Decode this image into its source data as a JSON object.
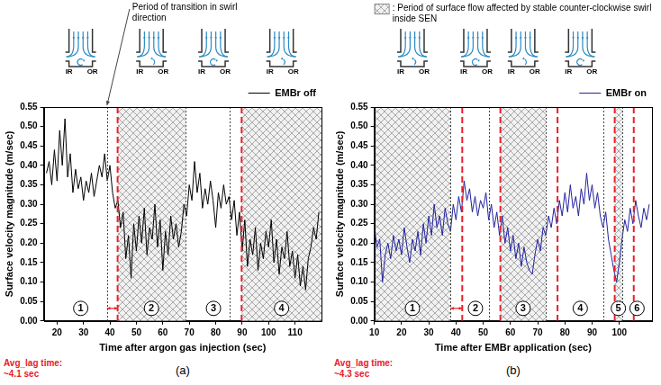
{
  "chart_data": [
    {
      "type": "line",
      "panel_label": "(a)",
      "x_label": "Time after argon gas injection (sec)",
      "y_label": "Surface velocity magnitude (m/sec)",
      "annotation": "Period of transition in swirl direction",
      "lag_label": [
        "Avg_lag time:",
        "~4.1 sec"
      ],
      "diagram_labels": [
        "IR",
        "OR"
      ],
      "legend": "top-right",
      "grid": false,
      "xlim": [
        15,
        120
      ],
      "xticks": [
        20,
        30,
        40,
        50,
        60,
        70,
        80,
        90,
        100,
        110
      ],
      "ylim": [
        0,
        0.55
      ],
      "yticks": [
        {
          "value": 0,
          "label": "0.00"
        },
        0.05,
        {
          "value": 0.1,
          "label": "0.10"
        },
        0.15,
        {
          "value": 0.2,
          "label": "0.20"
        },
        0.25,
        {
          "value": 0.3,
          "label": "0.30"
        },
        0.35,
        {
          "value": 0.4,
          "label": "0.40"
        },
        0.45,
        {
          "value": 0.5,
          "label": "0.50"
        },
        0.55
      ],
      "transitions": [
        38.9,
        68.5,
        85.1
      ],
      "lag_lines": [
        42.9,
        89.8
      ],
      "periods": [
        {
          "label": "1",
          "start": 15,
          "end": 42.9,
          "shaded": false
        },
        {
          "label": "2",
          "start": 42.9,
          "end": 68.5,
          "shaded": true
        },
        {
          "label": "3",
          "start": 68.5,
          "end": 89.8,
          "shaded": false
        },
        {
          "label": "4",
          "start": 89.8,
          "end": 120,
          "shaded": true
        }
      ],
      "x": [
        16,
        17,
        18,
        19,
        20,
        21,
        22,
        23,
        24,
        25,
        26,
        27,
        28,
        29,
        30,
        31,
        32,
        33,
        34,
        35,
        36,
        37,
        38,
        39,
        40,
        41,
        42,
        43,
        44,
        45,
        46,
        47,
        48,
        49,
        50,
        51,
        52,
        53,
        54,
        55,
        56,
        57,
        58,
        59,
        60,
        61,
        62,
        63,
        64,
        65,
        66,
        67,
        68,
        69,
        70,
        71,
        72,
        73,
        74,
        75,
        76,
        77,
        78,
        79,
        80,
        81,
        82,
        83,
        84,
        85,
        86,
        87,
        88,
        89,
        90,
        91,
        92,
        93,
        94,
        95,
        96,
        97,
        98,
        99,
        100,
        101,
        102,
        103,
        104,
        105,
        106,
        107,
        108,
        109,
        110,
        111,
        112,
        113,
        114,
        115,
        116,
        117,
        118,
        119
      ],
      "series": [
        {
          "name": "EMBr off",
          "color": "#000000",
          "values": [
            0.38,
            0.41,
            0.35,
            0.44,
            0.36,
            0.49,
            0.4,
            0.52,
            0.37,
            0.43,
            0.33,
            0.39,
            0.34,
            0.37,
            0.31,
            0.36,
            0.33,
            0.38,
            0.32,
            0.36,
            0.4,
            0.37,
            0.43,
            0.36,
            0.4,
            0.33,
            0.29,
            0.31,
            0.24,
            0.28,
            0.16,
            0.22,
            0.11,
            0.25,
            0.18,
            0.27,
            0.2,
            0.29,
            0.17,
            0.24,
            0.21,
            0.3,
            0.19,
            0.26,
            0.13,
            0.23,
            0.17,
            0.27,
            0.21,
            0.25,
            0.19,
            0.23,
            0.3,
            0.27,
            0.35,
            0.31,
            0.41,
            0.33,
            0.38,
            0.29,
            0.34,
            0.3,
            0.36,
            0.31,
            0.24,
            0.33,
            0.29,
            0.35,
            0.3,
            0.32,
            0.26,
            0.31,
            0.22,
            0.28,
            0.18,
            0.26,
            0.14,
            0.21,
            0.17,
            0.24,
            0.13,
            0.2,
            0.16,
            0.23,
            0.19,
            0.26,
            0.15,
            0.21,
            0.12,
            0.19,
            0.16,
            0.23,
            0.14,
            0.18,
            0.11,
            0.17,
            0.09,
            0.14,
            0.08,
            0.16,
            0.19,
            0.24,
            0.21,
            0.28
          ]
        }
      ]
    },
    {
      "type": "line",
      "panel_label": "(b)",
      "x_label": "Time after EMBr application (sec)",
      "y_label": "Surface velocity magnitude (m/sec)",
      "shading_legend": ": Period of surface flow affected by stable counter-clockwise swirl inside SEN",
      "lag_label": [
        "Avg_lag time:",
        "~4.3 sec"
      ],
      "diagram_labels": [
        "IR",
        "OR"
      ],
      "legend": "top-right",
      "grid": false,
      "xlim": [
        10,
        112
      ],
      "xticks": [
        10,
        20,
        30,
        40,
        50,
        60,
        70,
        80,
        90,
        100
      ],
      "ylim": [
        0,
        0.55
      ],
      "yticks": [
        {
          "value": 0,
          "label": "0.00"
        },
        0.05,
        {
          "value": 0.1,
          "label": "0.10"
        },
        0.15,
        {
          "value": 0.2,
          "label": "0.20"
        },
        0.25,
        {
          "value": 0.3,
          "label": "0.30"
        },
        0.35,
        {
          "value": 0.4,
          "label": "0.40"
        },
        0.45,
        {
          "value": 0.5,
          "label": "0.50"
        },
        0.55
      ],
      "transitions": [
        38,
        52,
        73,
        94,
        101
      ],
      "lag_lines": [
        42.3,
        56.3,
        77.3,
        98.3,
        105.3
      ],
      "periods": [
        {
          "label": "1",
          "start": 10,
          "end": 38,
          "shaded": true
        },
        {
          "label": "2",
          "start": 38,
          "end": 56.3,
          "shaded": false
        },
        {
          "label": "3",
          "start": 56.3,
          "end": 73,
          "shaded": true
        },
        {
          "label": "4",
          "start": 73,
          "end": 98.3,
          "shaded": false
        },
        {
          "label": "5",
          "start": 98.3,
          "end": 101,
          "shaded": true
        },
        {
          "label": "6",
          "start": 101,
          "end": 112,
          "shaded": false
        }
      ],
      "x": [
        10,
        11,
        12,
        13,
        14,
        15,
        16,
        17,
        18,
        19,
        20,
        21,
        22,
        23,
        24,
        25,
        26,
        27,
        28,
        29,
        30,
        31,
        32,
        33,
        34,
        35,
        36,
        37,
        38,
        39,
        40,
        41,
        42,
        43,
        44,
        45,
        46,
        47,
        48,
        49,
        50,
        51,
        52,
        53,
        54,
        55,
        56,
        57,
        58,
        59,
        60,
        61,
        62,
        63,
        64,
        65,
        66,
        67,
        68,
        69,
        70,
        71,
        72,
        73,
        74,
        75,
        76,
        77,
        78,
        79,
        80,
        81,
        82,
        83,
        84,
        85,
        86,
        87,
        88,
        89,
        90,
        91,
        92,
        93,
        94,
        95,
        96,
        97,
        98,
        99,
        100,
        101,
        102,
        103,
        104,
        105,
        106,
        107,
        108,
        109,
        110,
        111
      ],
      "series": [
        {
          "name": "EMBr on",
          "color": "#22229e",
          "values": [
            0.24,
            0.19,
            0.21,
            0.1,
            0.17,
            0.2,
            0.16,
            0.22,
            0.18,
            0.21,
            0.17,
            0.24,
            0.19,
            0.15,
            0.21,
            0.18,
            0.23,
            0.17,
            0.25,
            0.2,
            0.27,
            0.22,
            0.3,
            0.24,
            0.27,
            0.22,
            0.29,
            0.25,
            0.23,
            0.3,
            0.26,
            0.32,
            0.28,
            0.36,
            0.31,
            0.34,
            0.28,
            0.32,
            0.27,
            0.31,
            0.29,
            0.33,
            0.26,
            0.3,
            0.24,
            0.28,
            0.22,
            0.27,
            0.2,
            0.24,
            0.18,
            0.22,
            0.16,
            0.2,
            0.14,
            0.19,
            0.15,
            0.13,
            0.12,
            0.17,
            0.21,
            0.18,
            0.24,
            0.22,
            0.27,
            0.24,
            0.29,
            0.25,
            0.31,
            0.27,
            0.33,
            0.28,
            0.35,
            0.29,
            0.32,
            0.27,
            0.34,
            0.3,
            0.38,
            0.31,
            0.35,
            0.29,
            0.33,
            0.27,
            0.24,
            0.28,
            0.21,
            0.17,
            0.13,
            0.1,
            0.15,
            0.21,
            0.26,
            0.23,
            0.29,
            0.25,
            0.31,
            0.27,
            0.24,
            0.29,
            0.26,
            0.3
          ]
        }
      ]
    }
  ]
}
